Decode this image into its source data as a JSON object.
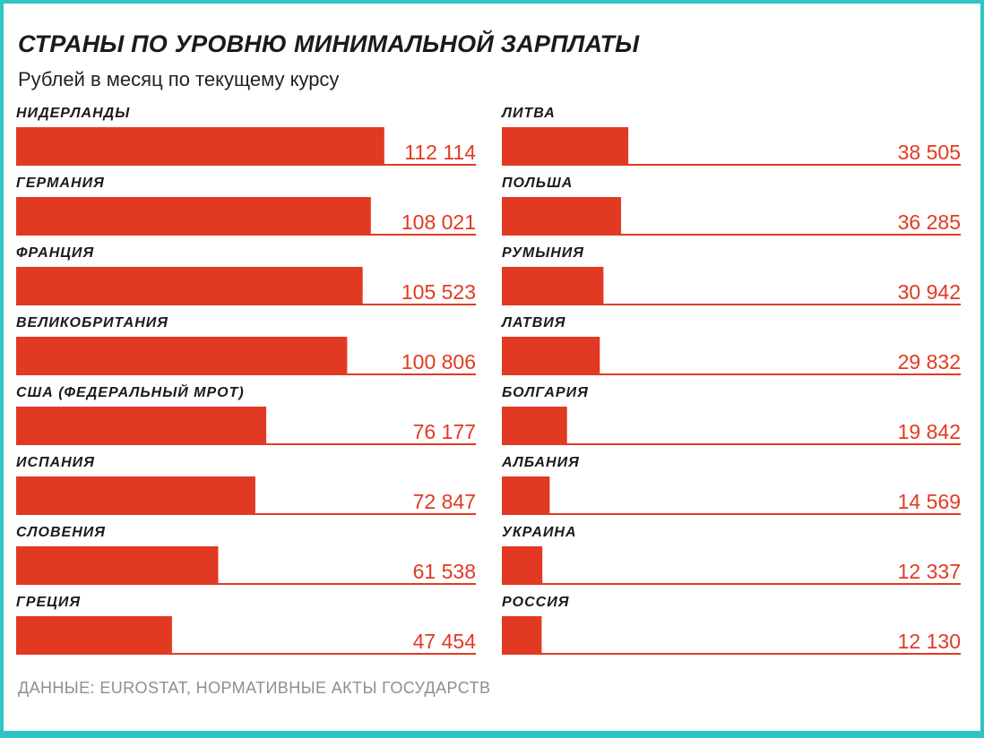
{
  "colors": {
    "bar": "#e23a22",
    "baseline": "#e23a22",
    "border": "#2fc4c4"
  },
  "header": {
    "title": "СТРАНЫ ПО УРОВНЮ МИНИМАЛЬНОЙ ЗАРПЛАТЫ",
    "subtitle": "Рублей в месяц по текущему курсу"
  },
  "footer": {
    "source": "ДАННЫЕ: EUROSTAT, НОРМАТИВНЫЕ АКТЫ ГОСУДАРСТВ"
  },
  "chart_data": {
    "type": "bar",
    "orientation": "horizontal",
    "title": "СТРАНЫ ПО УРОВНЮ МИНИМАЛЬНОЙ ЗАРПЛАТЫ",
    "subtitle": "Рублей в месяц по текущему курсу",
    "unit": "рублей в месяц",
    "xlim": [
      0,
      140000
    ],
    "grid": false,
    "layout": "two-column",
    "categories": [
      "НИДЕРЛАНДЫ",
      "ГЕРМАНИЯ",
      "ФРАНЦИЯ",
      "ВЕЛИКОБРИТАНИЯ",
      "США (ФЕДЕРАЛЬНЫЙ МРОТ)",
      "ИСПАНИЯ",
      "СЛОВЕНИЯ",
      "ГРЕЦИЯ",
      "ЛИТВА",
      "ПОЛЬША",
      "РУМЫНИЯ",
      "ЛАТВИЯ",
      "БОЛГАРИЯ",
      "АЛБАНИЯ",
      "УКРАИНА",
      "РОССИЯ"
    ],
    "values": [
      112114,
      108021,
      105523,
      100806,
      76177,
      72847,
      61538,
      47454,
      38505,
      36285,
      30942,
      29832,
      19842,
      14569,
      12337,
      12130
    ],
    "value_labels": [
      "112 114",
      "108 021",
      "105 523",
      "100 806",
      "76 177",
      "72 847",
      "61 538",
      "47 454",
      "38 505",
      "36 285",
      "30 942",
      "29 832",
      "19 842",
      "14 569",
      "12 337",
      "12 130"
    ],
    "source": "ДАННЫЕ: EUROSTAT, НОРМАТИВНЫЕ АКТЫ ГОСУДАРСТВ"
  }
}
